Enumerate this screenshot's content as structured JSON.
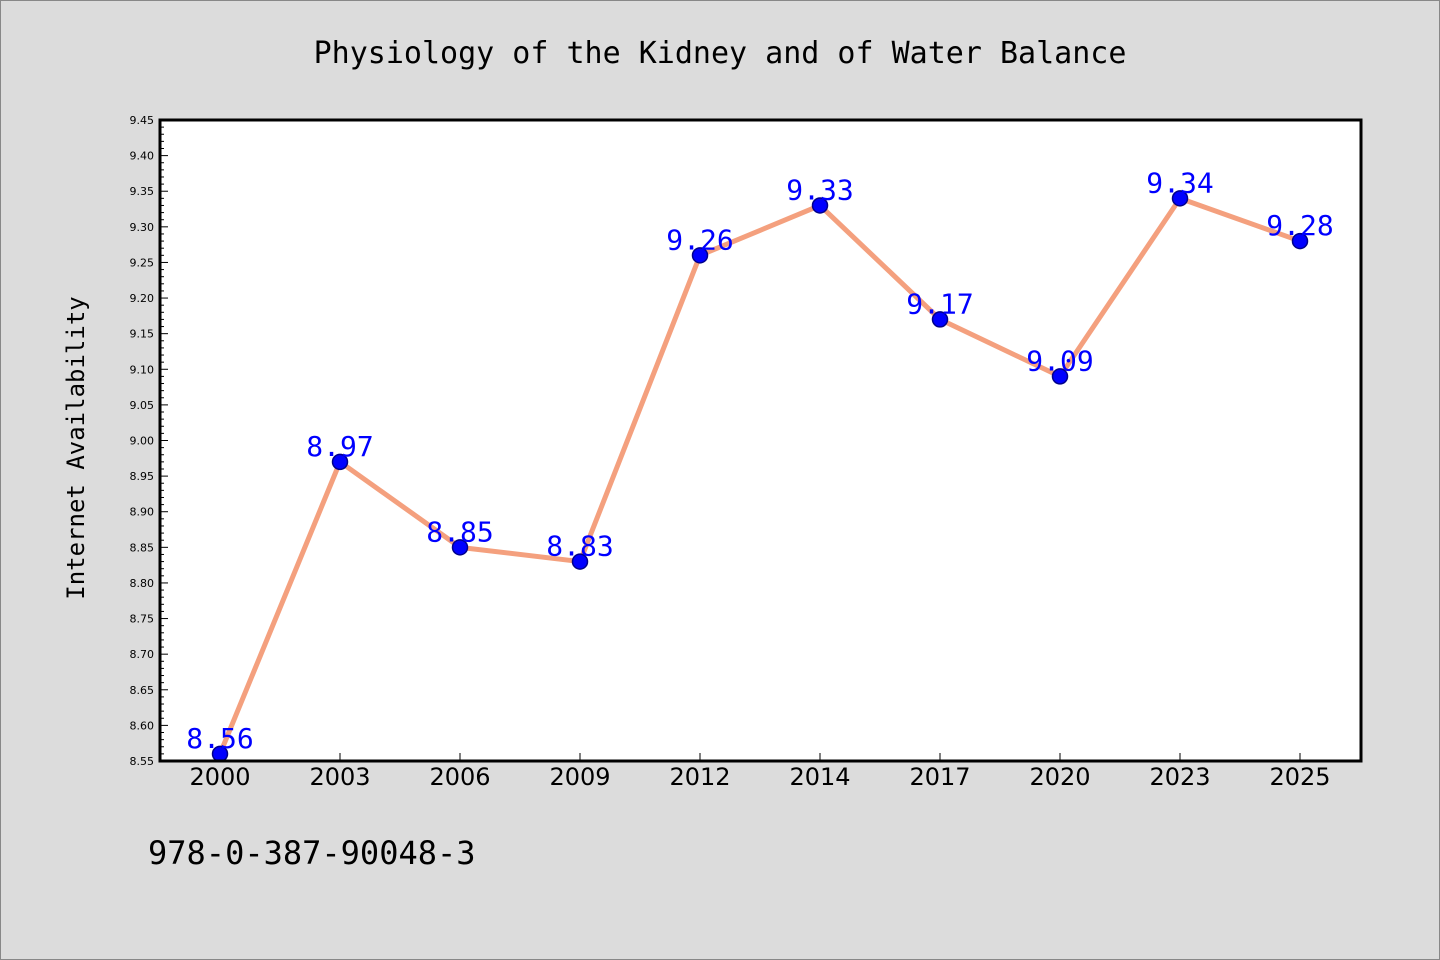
{
  "chart_data": {
    "type": "line",
    "title": "Physiology of the Kidney and of Water Balance",
    "xlabel": "",
    "ylabel": "Internet Availability",
    "categories": [
      "2000",
      "2003",
      "2006",
      "2009",
      "2012",
      "2014",
      "2017",
      "2020",
      "2023",
      "2025"
    ],
    "values": [
      8.56,
      8.97,
      8.85,
      8.83,
      9.26,
      9.33,
      9.17,
      9.09,
      9.34,
      9.28
    ],
    "data_labels": [
      "8.56",
      "8.97",
      "8.85",
      "8.83",
      "9.26",
      "9.33",
      "9.17",
      "9.09",
      "9.34",
      "9.28"
    ],
    "ylim": [
      8.55,
      9.45
    ],
    "yticks": [
      "8.55",
      "8.60",
      "8.65",
      "8.70",
      "8.75",
      "8.80",
      "8.85",
      "8.90",
      "8.95",
      "9.00",
      "9.05",
      "9.10",
      "9.15",
      "9.20",
      "9.25",
      "9.30",
      "9.35",
      "9.40",
      "9.45"
    ],
    "grid": false,
    "legend": "none",
    "colors": {
      "line": "#f4a07e",
      "marker": "#0000ff",
      "marker_edge": "#00008b",
      "data_label": "#0000ff",
      "plot_background": "#ffffff",
      "figure_background": "#dcdcdc"
    }
  },
  "footer": {
    "isbn": "978-0-387-90048-3"
  }
}
